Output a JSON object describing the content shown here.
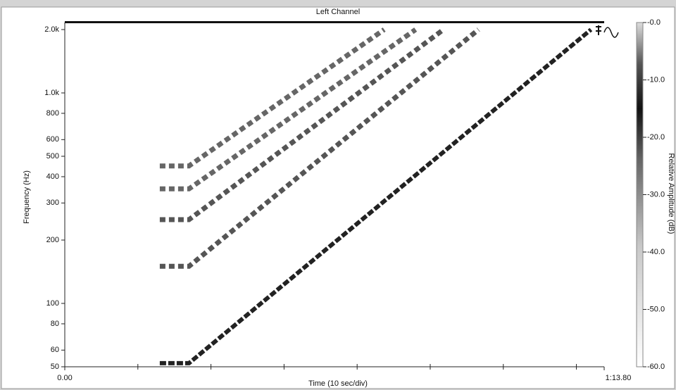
{
  "chart_data": {
    "type": "spectrogram",
    "title": "Left Channel",
    "x_label": "Time (10 sec/div)",
    "y_label": "Frequency (Hz)",
    "colorbar_label": "Relative Amplitude (dB)",
    "xlim": [
      0,
      73.8
    ],
    "xticks": [
      {
        "value": 0,
        "label": "0.00"
      },
      {
        "value": 73.8,
        "label": "1:13.80"
      }
    ],
    "xminor": [
      10,
      20,
      30,
      40,
      50,
      60,
      70
    ],
    "ylim": [
      50,
      2160
    ],
    "log_y": true,
    "yticks": [
      50,
      60,
      80,
      100,
      200,
      300,
      400,
      500,
      600,
      800,
      {
        "value": 1000,
        "label": "1.0k"
      },
      {
        "value": 2000,
        "label": "2.0k"
      }
    ],
    "zlim": [
      -60,
      0
    ],
    "zticks": [
      {
        "value": 0,
        "label": "-0.0"
      },
      {
        "value": -10,
        "label": "-10.0"
      },
      {
        "value": -20,
        "label": "-20.0"
      },
      {
        "value": -30,
        "label": "-30.0"
      },
      {
        "value": -40,
        "label": "-40.0"
      },
      {
        "value": -50,
        "label": "-50.0"
      },
      {
        "value": -60,
        "label": "-60.0"
      }
    ],
    "series": [
      {
        "color": "#222222",
        "x": [
          13,
          17,
          72
        ],
        "values": [
          52,
          52,
          2000
        ]
      },
      {
        "color": "#555555",
        "x": [
          13,
          17,
          56.6
        ],
        "values": [
          150,
          150,
          2000
        ]
      },
      {
        "color": "#555555",
        "x": [
          13,
          17,
          51.8
        ],
        "values": [
          250,
          250,
          2000
        ]
      },
      {
        "color": "#666666",
        "x": [
          13,
          17,
          48
        ],
        "values": [
          350,
          350,
          2000
        ]
      },
      {
        "color": "#666666",
        "x": [
          13,
          17,
          43.7
        ],
        "values": [
          450,
          450,
          2000
        ]
      }
    ]
  }
}
